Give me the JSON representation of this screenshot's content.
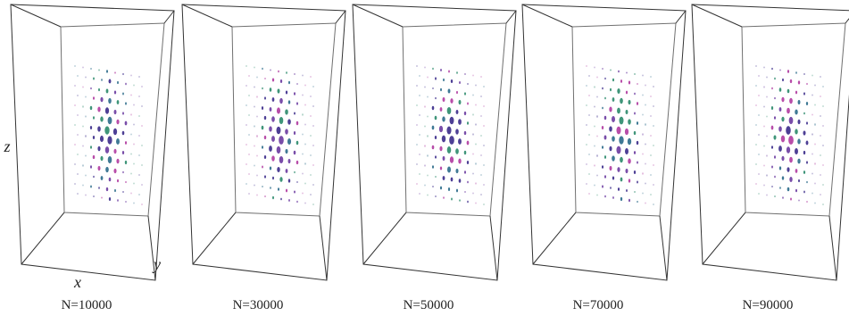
{
  "axes": {
    "z": "z",
    "x": "x",
    "y": "y"
  },
  "panels": [
    {
      "label": "N=10000"
    },
    {
      "label": "N=30000"
    },
    {
      "label": "N=50000"
    },
    {
      "label": "N=70000"
    },
    {
      "label": "N=90000"
    }
  ]
}
